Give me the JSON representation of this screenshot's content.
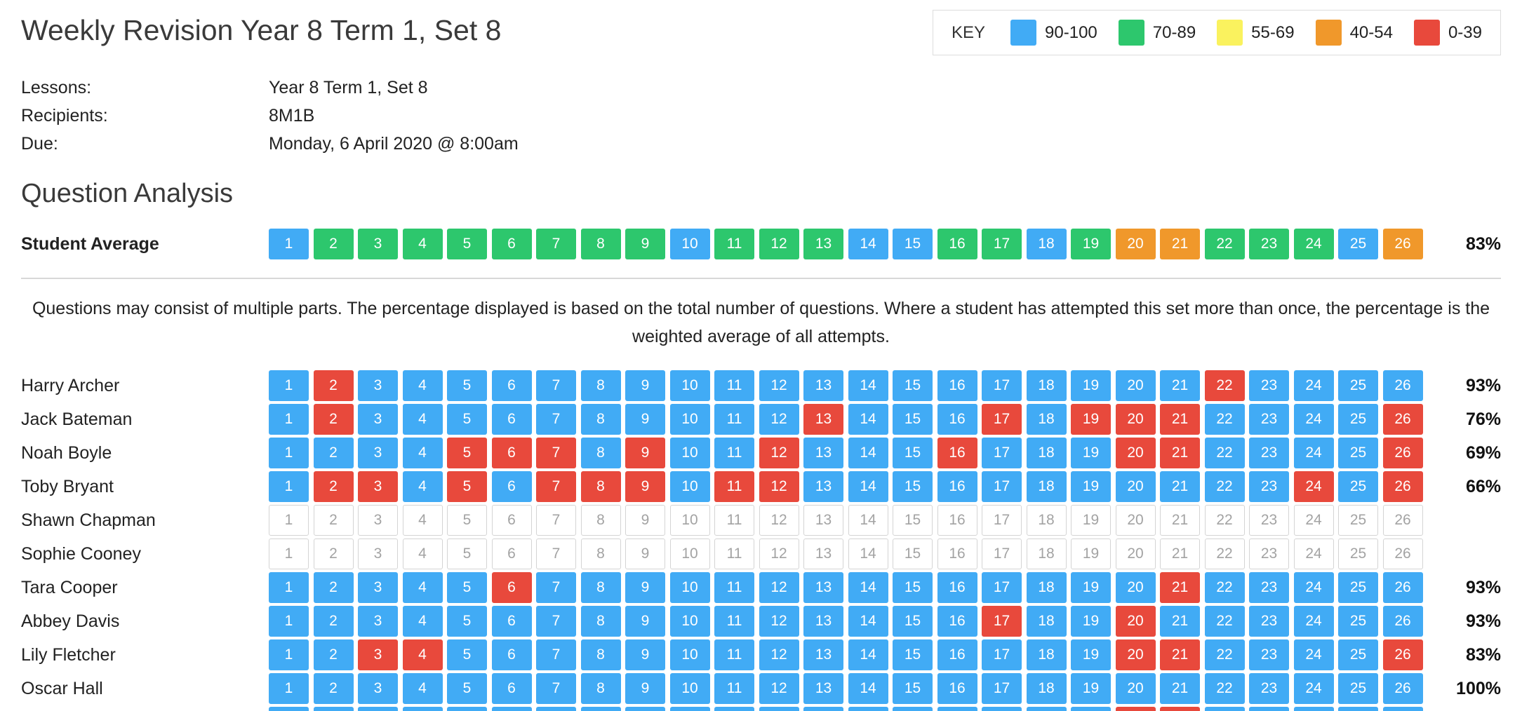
{
  "header": {
    "title": "Weekly Revision Year 8 Term 1, Set 8",
    "key": {
      "label": "KEY",
      "bands": [
        {
          "label": "90-100",
          "color": "#41ABF5"
        },
        {
          "label": "70-89",
          "color": "#2DC76D"
        },
        {
          "label": "55-69",
          "color": "#FAF25E"
        },
        {
          "label": "40-54",
          "color": "#F0982B"
        },
        {
          "label": "0-39",
          "color": "#E8493C"
        }
      ]
    }
  },
  "meta": [
    {
      "label": "Lessons:",
      "value": "Year 8 Term 1, Set 8"
    },
    {
      "label": "Recipients:",
      "value": "8M1B"
    },
    {
      "label": "Due:",
      "value": "Monday, 6 April 2020 @ 8:00am"
    }
  ],
  "section": {
    "title": "Question Analysis",
    "note": "Questions may consist of multiple parts. The percentage displayed is based on the total number of questions. Where a student has attempted this set more than once, the percentage is the weighted average of all attempts."
  },
  "colors": {
    "b": "#41ABF5",
    "g": "#2DC76D",
    "y": "#FAF25E",
    "o": "#F0982B",
    "r": "#E8493C"
  },
  "question_count": 26,
  "average": {
    "label": "Student Average",
    "percent": "83%",
    "cells": "bggggggggbgggbbggbgoogggbo"
  },
  "students": [
    {
      "name": "Harry Archer",
      "percent": "93%",
      "cells": "brbbbbbbbbbbbbbbbbbbbrbbbb"
    },
    {
      "name": "Jack Bateman",
      "percent": "76%",
      "cells": "brbbbbbbbbbbrbbbrbrrrbbbbr"
    },
    {
      "name": "Noah Boyle",
      "percent": "69%",
      "cells": "bbbbrrrbrbbrbbbrbbbrrbbbbr"
    },
    {
      "name": "Toby Bryant",
      "percent": "66%",
      "cells": "brrbrbrrrbrrbbbbbbbbbbbrbr"
    },
    {
      "name": "Shawn Chapman",
      "percent": "",
      "cells": "eeeeeeeeeeeeeeeeeeeeeeeeee"
    },
    {
      "name": "Sophie Cooney",
      "percent": "",
      "cells": "eeeeeeeeeeeeeeeeeeeeeeeeee"
    },
    {
      "name": "Tara Cooper",
      "percent": "93%",
      "cells": "bbbbbrbbbbbbbbbbbbbbrbbbbb"
    },
    {
      "name": "Abbey Davis",
      "percent": "93%",
      "cells": "bbbbbbbbbbbbbbbbrbbrbbbbbb"
    },
    {
      "name": "Lily Fletcher",
      "percent": "83%",
      "cells": "bbrrbbbbbbbbbbbbbbbrrbbbbr"
    },
    {
      "name": "Oscar Hall",
      "percent": "100%",
      "cells": "bbbbbbbbbbbbbbbbbbbbbbbbbb"
    },
    {
      "name": "",
      "percent": "",
      "cells": "bbbbbbbbbbbbbbbbbbbrrbbbbb"
    }
  ]
}
